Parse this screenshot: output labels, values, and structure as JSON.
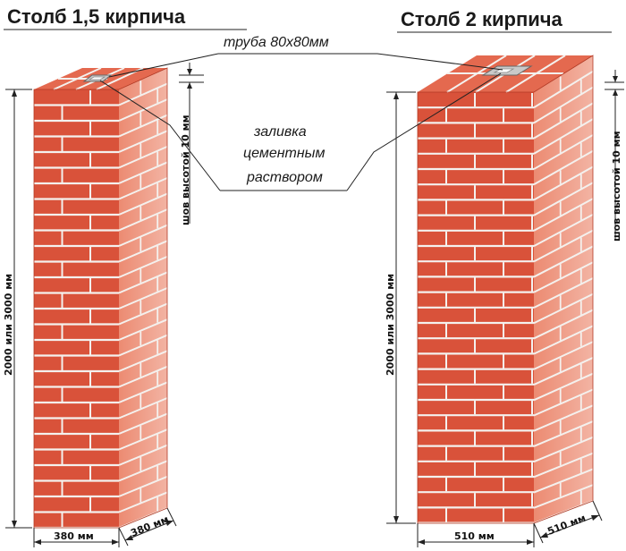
{
  "titles": {
    "left": "Столб 1,5 кирпича",
    "right": "Столб 2 кирпича"
  },
  "notes": {
    "pipe": "труба 80х80мм",
    "fill_line1": "заливка",
    "fill_line2": "цементным",
    "fill_line3": "раствором"
  },
  "dimensions": {
    "seam_left": "шов высотой 10 мм",
    "seam_right": "шов высотой 10 мм",
    "height_left": "2000 или 3000 мм",
    "height_right": "2000 или 3000 мм",
    "width_left": "380 мм",
    "depth_left": "380 мм",
    "width_right": "510 мм",
    "depth_right": "510 мм"
  },
  "colors": {
    "brick_front": "#d9523a",
    "brick_side": "#ec8b72",
    "brick_top": "#e4694f",
    "mortar": "#f4f1ee",
    "pipe": "#c9c9c9",
    "line": "#222222"
  }
}
